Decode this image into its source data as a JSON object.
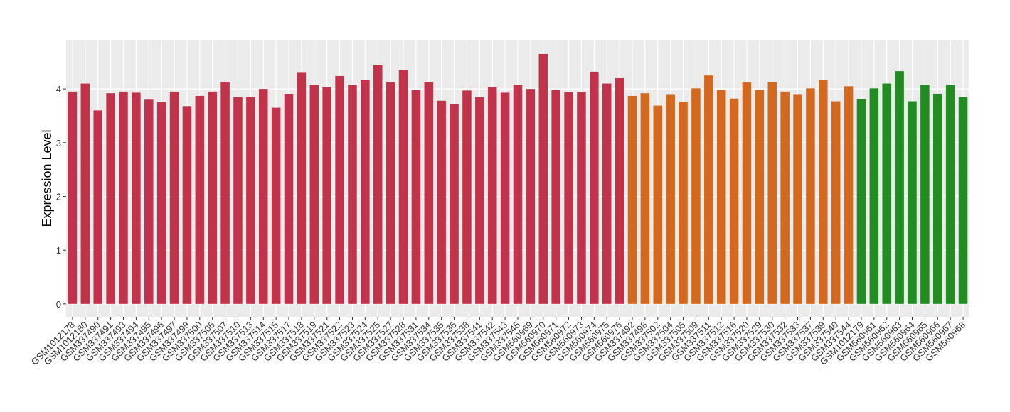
{
  "chart_data": {
    "type": "bar",
    "y_label": "Expression Level",
    "categories": [
      "GSM1012178",
      "GSM1012180",
      "GSM337490",
      "GSM337491",
      "GSM337493",
      "GSM337494",
      "GSM337495",
      "GSM337496",
      "GSM337497",
      "GSM337499",
      "GSM337500",
      "GSM337506",
      "GSM337507",
      "GSM337510",
      "GSM337513",
      "GSM337514",
      "GSM337515",
      "GSM337517",
      "GSM337518",
      "GSM337519",
      "GSM337521",
      "GSM337522",
      "GSM337523",
      "GSM337524",
      "GSM337525",
      "GSM337527",
      "GSM337528",
      "GSM337531",
      "GSM337534",
      "GSM337535",
      "GSM337536",
      "GSM337538",
      "GSM337541",
      "GSM337542",
      "GSM337543",
      "GSM337545",
      "GSM560969",
      "GSM560970",
      "GSM560971",
      "GSM560972",
      "GSM560973",
      "GSM560974",
      "GSM560975",
      "GSM560976",
      "GSM337492",
      "GSM337498",
      "GSM337502",
      "GSM337504",
      "GSM337505",
      "GSM337509",
      "GSM337511",
      "GSM337512",
      "GSM337516",
      "GSM337520",
      "GSM337529",
      "GSM337530",
      "GSM337532",
      "GSM337533",
      "GSM337537",
      "GSM337539",
      "GSM337540",
      "GSM337544",
      "GSM1012179",
      "GSM560961",
      "GSM560962",
      "GSM560963",
      "GSM560964",
      "GSM560965",
      "GSM560966",
      "GSM560967",
      "GSM560968"
    ],
    "values": [
      3.95,
      4.1,
      3.6,
      3.92,
      3.95,
      3.93,
      3.8,
      3.75,
      3.95,
      3.68,
      3.87,
      3.95,
      4.12,
      3.85,
      3.85,
      4.0,
      3.65,
      3.9,
      4.3,
      4.07,
      4.03,
      4.24,
      4.08,
      4.16,
      4.45,
      4.12,
      4.35,
      3.98,
      4.13,
      3.78,
      3.72,
      3.97,
      3.85,
      4.03,
      3.93,
      4.07,
      4.0,
      4.65,
      3.98,
      3.94,
      3.94,
      4.32,
      4.1,
      4.2,
      3.87,
      3.92,
      3.69,
      3.89,
      3.76,
      4.01,
      4.25,
      3.98,
      3.82,
      4.12,
      3.98,
      4.13,
      3.95,
      3.89,
      4.01,
      4.16,
      3.77,
      4.05,
      3.81,
      4.01,
      4.1,
      4.33,
      3.77,
      4.07,
      3.91,
      4.08,
      3.85
    ],
    "colors": [
      "#c0334a",
      "#c0334a",
      "#c0334a",
      "#c0334a",
      "#c0334a",
      "#c0334a",
      "#c0334a",
      "#c0334a",
      "#c0334a",
      "#c0334a",
      "#c0334a",
      "#c0334a",
      "#c0334a",
      "#c0334a",
      "#c0334a",
      "#c0334a",
      "#c0334a",
      "#c0334a",
      "#c0334a",
      "#c0334a",
      "#c0334a",
      "#c0334a",
      "#c0334a",
      "#c0334a",
      "#c0334a",
      "#c0334a",
      "#c0334a",
      "#c0334a",
      "#c0334a",
      "#c0334a",
      "#c0334a",
      "#c0334a",
      "#c0334a",
      "#c0334a",
      "#c0334a",
      "#c0334a",
      "#c0334a",
      "#c0334a",
      "#c0334a",
      "#c0334a",
      "#c0334a",
      "#c0334a",
      "#c0334a",
      "#c0334a",
      "#d2691e",
      "#d2691e",
      "#d2691e",
      "#d2691e",
      "#d2691e",
      "#d2691e",
      "#d2691e",
      "#d2691e",
      "#d2691e",
      "#d2691e",
      "#d2691e",
      "#d2691e",
      "#d2691e",
      "#d2691e",
      "#d2691e",
      "#d2691e",
      "#d2691e",
      "#d2691e",
      "#228b22",
      "#228b22",
      "#228b22",
      "#228b22",
      "#228b22",
      "#228b22",
      "#228b22",
      "#228b22",
      "#228b22"
    ],
    "ylim": [
      -0.24,
      4.9
    ],
    "yticks": [
      0,
      1,
      2,
      3,
      4
    ],
    "grid": true
  }
}
